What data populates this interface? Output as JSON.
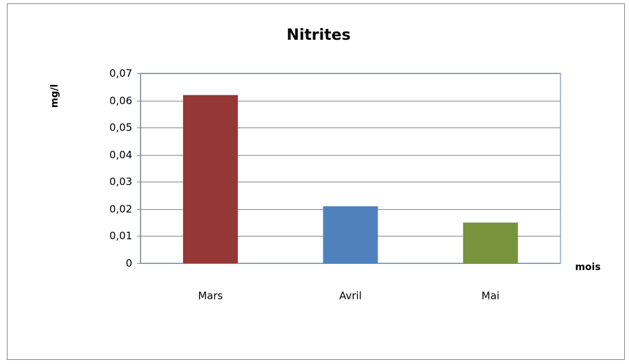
{
  "chart_data": {
    "type": "bar",
    "title": "Nitrites",
    "y_label": "mg/l",
    "x_label": "mois",
    "categories": [
      "Mars",
      "Avril",
      "Mai"
    ],
    "values": [
      0.062,
      0.021,
      0.015
    ],
    "colors": [
      "#953735",
      "#4f81bd",
      "#77933c"
    ],
    "ylim": [
      0,
      0.07
    ],
    "yticks": [
      0,
      {
        "value": 0.01,
        "label": "0,01"
      },
      {
        "value": 0.02,
        "label": "0,02"
      },
      {
        "value": 0.03,
        "label": "0,03"
      },
      {
        "value": 0.04,
        "label": "0,04"
      },
      {
        "value": 0.05,
        "label": "0,05"
      },
      {
        "value": 0.06,
        "label": "0,06"
      },
      {
        "value": 0.07,
        "label": "0,07"
      }
    ],
    "grid": true
  }
}
